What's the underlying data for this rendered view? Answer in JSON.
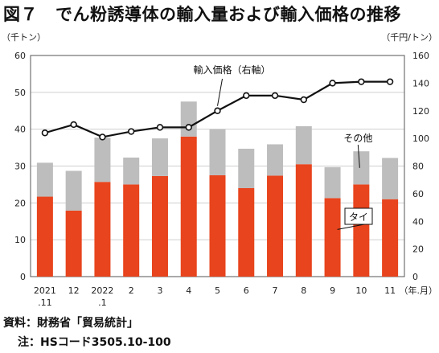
{
  "figure": {
    "number": "図７",
    "title": "でん粉誘導体の輸入量および輸入価格の推移"
  },
  "footnotes": {
    "source": "資料：財務省「貿易統計」",
    "note": "注：HSコード3505.10-100"
  },
  "chart_data": {
    "type": "bar+line",
    "left_axis": {
      "unit_label": "（千トン）",
      "ylim": [
        0,
        60
      ],
      "ticks": [
        0,
        10,
        20,
        30,
        40,
        50,
        60
      ]
    },
    "right_axis": {
      "unit_label": "（千円/トン）",
      "ylim": [
        0,
        160
      ],
      "ticks": [
        0,
        20,
        40,
        60,
        80,
        100,
        120,
        140,
        160
      ]
    },
    "x_unit_label": "（年.月）",
    "categories": [
      {
        "line1": "2021",
        "line2": ".11"
      },
      {
        "line1": "12",
        "line2": ""
      },
      {
        "line1": "2022",
        "line2": ".1"
      },
      {
        "line1": "2",
        "line2": ""
      },
      {
        "line1": "3",
        "line2": ""
      },
      {
        "line1": "4",
        "line2": ""
      },
      {
        "line1": "5",
        "line2": ""
      },
      {
        "line1": "6",
        "line2": ""
      },
      {
        "line1": "7",
        "line2": ""
      },
      {
        "line1": "8",
        "line2": ""
      },
      {
        "line1": "9",
        "line2": ""
      },
      {
        "line1": "10",
        "line2": ""
      },
      {
        "line1": "11",
        "line2": ""
      }
    ],
    "series": [
      {
        "name": "タイ",
        "kind": "stacked-bar",
        "axis": "left",
        "color": "#e8441d",
        "values": [
          21.7,
          17.9,
          25.7,
          25.0,
          27.3,
          38.0,
          27.5,
          24.0,
          27.4,
          30.5,
          21.3,
          25.0,
          21.0
        ]
      },
      {
        "name": "その他",
        "kind": "stacked-bar",
        "axis": "left",
        "color": "#bdbdbd",
        "values": [
          9.2,
          10.8,
          12.0,
          7.3,
          10.2,
          9.5,
          12.5,
          10.7,
          8.5,
          10.3,
          8.4,
          9.0,
          11.2
        ]
      },
      {
        "name": "輸入価格（右軸）",
        "kind": "line",
        "axis": "right",
        "color": "#111111",
        "values": [
          104,
          110,
          101,
          105,
          108,
          108,
          120,
          131,
          131,
          128,
          140,
          141,
          141
        ]
      }
    ],
    "grid": true
  }
}
